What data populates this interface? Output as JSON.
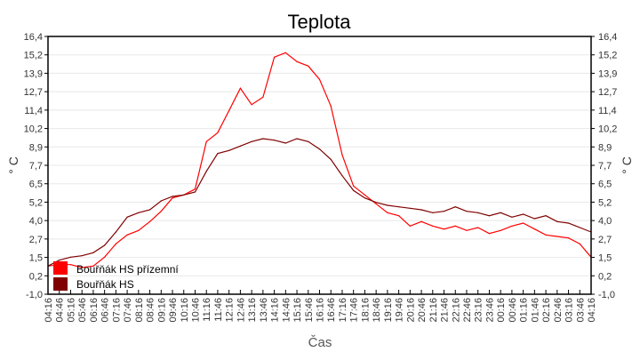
{
  "chart_data": {
    "type": "line",
    "title": "Teplota",
    "xlabel": "Čas",
    "ylabel": "° C",
    "ylabel_right": "° C",
    "ylim": [
      -1.0,
      16.4
    ],
    "yticks": [
      "16,4",
      "15,2",
      "13,9",
      "12,7",
      "11,4",
      "10,2",
      "8,9",
      "7,7",
      "6,5",
      "5,2",
      "4,0",
      "2,7",
      "1,5",
      "0,2",
      "-1,0"
    ],
    "grid": "horizontal",
    "legend_position": "bottom-left",
    "x": [
      "04:16",
      "04:46",
      "05:16",
      "05:46",
      "06:16",
      "06:46",
      "07:16",
      "07:46",
      "08:16",
      "08:46",
      "09:16",
      "09:46",
      "10:16",
      "10:46",
      "11:16",
      "11:46",
      "12:16",
      "12:46",
      "13:16",
      "13:46",
      "14:16",
      "14:46",
      "15:16",
      "15:46",
      "16:16",
      "16:46",
      "17:16",
      "17:46",
      "18:16",
      "18:46",
      "19:16",
      "19:46",
      "20:16",
      "20:46",
      "21:16",
      "21:46",
      "22:16",
      "22:46",
      "23:16",
      "23:46",
      "00:16",
      "00:46",
      "01:16",
      "01:46",
      "02:16",
      "02:46",
      "03:16",
      "03:46",
      "04:16"
    ],
    "series": [
      {
        "name": "Bouřňák HS přízemní",
        "color": "#ff0000",
        "values": [
          0.9,
          1.0,
          1.0,
          0.8,
          0.9,
          1.5,
          2.4,
          3.0,
          3.3,
          3.9,
          4.6,
          5.5,
          5.7,
          6.1,
          9.3,
          9.9,
          11.4,
          12.9,
          11.8,
          12.3,
          15.0,
          15.3,
          14.7,
          14.4,
          13.5,
          11.7,
          8.4,
          6.3,
          5.7,
          5.1,
          4.5,
          4.3,
          3.6,
          3.9,
          3.6,
          3.4,
          3.6,
          3.3,
          3.5,
          3.1,
          3.3,
          3.6,
          3.8,
          3.4,
          3.0,
          2.9,
          2.8,
          2.4,
          1.5
        ]
      },
      {
        "name": "Bouřňák HS",
        "color": "#800000",
        "values": [
          0.9,
          1.3,
          1.5,
          1.6,
          1.8,
          2.3,
          3.2,
          4.2,
          4.5,
          4.7,
          5.3,
          5.6,
          5.7,
          5.9,
          7.3,
          8.5,
          8.7,
          9.0,
          9.3,
          9.5,
          9.4,
          9.2,
          9.5,
          9.3,
          8.8,
          8.1,
          7.0,
          6.0,
          5.5,
          5.2,
          5.0,
          4.9,
          4.8,
          4.7,
          4.5,
          4.6,
          4.9,
          4.6,
          4.5,
          4.3,
          4.5,
          4.2,
          4.4,
          4.1,
          4.3,
          3.9,
          3.8,
          3.5,
          3.2
        ]
      }
    ]
  }
}
